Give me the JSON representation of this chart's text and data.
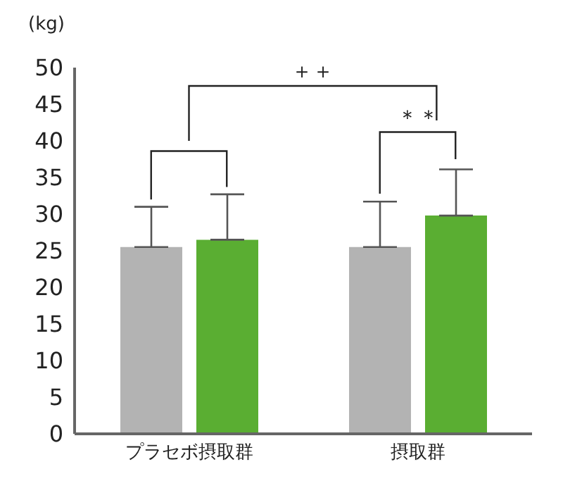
{
  "chart_data": {
    "type": "bar",
    "ylabel": "(kg)",
    "categories": [
      "プラセボ摂取群",
      "摂取群"
    ],
    "series": [
      {
        "color": "#b3b3b3",
        "values": [
          25.5,
          25.5
        ],
        "errors": [
          [
            25.5,
            31.0
          ],
          [
            25.5,
            31.7
          ]
        ]
      },
      {
        "color": "#5aae32",
        "values": [
          26.5,
          29.8
        ],
        "errors": [
          [
            26.5,
            32.7
          ],
          [
            29.8,
            36.1
          ]
        ]
      }
    ],
    "ylim": [
      0,
      50
    ],
    "yticks": [
      0,
      5,
      10,
      15,
      20,
      25,
      30,
      35,
      40,
      45,
      50
    ],
    "grid": false,
    "legend": false,
    "annotations": [
      "＋＋",
      "＊＊"
    ]
  }
}
